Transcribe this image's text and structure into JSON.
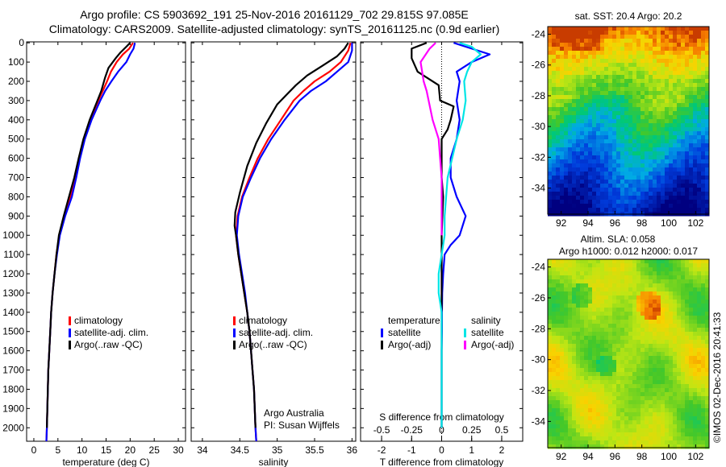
{
  "header": {
    "line1": "Argo profile: CS 5903692_191 25-Nov-2016 20161129_702 29.815S 97.085E",
    "line2": "Climatology: CARS2009. Satellite-adjusted climatology: synTS_20161125.nc (0.9d earlier)"
  },
  "depth_ticks": [
    "0",
    "100",
    "200",
    "300",
    "400",
    "500",
    "600",
    "700",
    "800",
    "900",
    "1000",
    "1100",
    "1200",
    "1300",
    "1400",
    "1500",
    "1600",
    "1700",
    "1800",
    "1900",
    "2000"
  ],
  "colors": {
    "climatology": "#ff0000",
    "satellite_adj": "#0000ff",
    "argo": "#000000",
    "s_satellite": "#00e5e5",
    "s_argo": "#ff00ff"
  },
  "chart_data": [
    {
      "type": "line",
      "name": "temperature-profile",
      "xlabel": "temperature (deg C)",
      "xlim": [
        -1.5,
        31.5
      ],
      "ylim": [
        2070,
        -5
      ],
      "x_ticks": [
        "0",
        "5",
        "10",
        "15",
        "20",
        "25",
        "30"
      ],
      "legend": [
        "climatology",
        "satellite-adj. clim.",
        "Argo(..raw -QC)"
      ],
      "legend_position": "lower-right",
      "series": [
        {
          "name": "climatology",
          "color": "#ff0000",
          "points": [
            [
              20.6,
              0
            ],
            [
              19.8,
              30
            ],
            [
              18.5,
              60
            ],
            [
              17.2,
              100
            ],
            [
              16.0,
              150
            ],
            [
              15.2,
              200
            ],
            [
              14.3,
              250
            ],
            [
              13.4,
              300
            ],
            [
              11.8,
              400
            ],
            [
              10.5,
              500
            ],
            [
              9.5,
              600
            ],
            [
              8.6,
              700
            ],
            [
              7.6,
              800
            ],
            [
              6.4,
              900
            ],
            [
              5.3,
              1000
            ],
            [
              4.7,
              1100
            ],
            [
              4.3,
              1200
            ],
            [
              3.9,
              1300
            ],
            [
              3.6,
              1400
            ],
            [
              3.4,
              1500
            ],
            [
              3.2,
              1600
            ],
            [
              3.0,
              1700
            ],
            [
              2.9,
              1800
            ],
            [
              2.8,
              1900
            ],
            [
              2.7,
              2000
            ],
            [
              2.6,
              2070
            ]
          ]
        },
        {
          "name": "satellite-adj. clim.",
          "color": "#0000ff",
          "points": [
            [
              21.0,
              0
            ],
            [
              20.7,
              30
            ],
            [
              20.0,
              60
            ],
            [
              19.2,
              100
            ],
            [
              17.5,
              150
            ],
            [
              16.1,
              200
            ],
            [
              14.8,
              250
            ],
            [
              13.8,
              300
            ],
            [
              12.0,
              400
            ],
            [
              10.6,
              500
            ],
            [
              9.6,
              600
            ],
            [
              8.8,
              700
            ],
            [
              7.9,
              800
            ],
            [
              6.5,
              900
            ],
            [
              5.4,
              1000
            ],
            [
              4.8,
              1100
            ],
            [
              4.3,
              1200
            ],
            [
              3.9,
              1300
            ],
            [
              3.6,
              1400
            ],
            [
              3.4,
              1500
            ],
            [
              3.2,
              1600
            ],
            [
              3.0,
              1700
            ],
            [
              2.9,
              1800
            ],
            [
              2.8,
              1900
            ],
            [
              2.7,
              2000
            ],
            [
              2.6,
              2070
            ]
          ]
        },
        {
          "name": "Argo(..raw -QC)",
          "color": "#000000",
          "points": [
            [
              20.0,
              0
            ],
            [
              19.2,
              20
            ],
            [
              18.0,
              50
            ],
            [
              17.0,
              80
            ],
            [
              15.5,
              130
            ],
            [
              14.8,
              180
            ],
            [
              14.0,
              250
            ],
            [
              13.2,
              300
            ],
            [
              11.6,
              400
            ],
            [
              10.3,
              500
            ],
            [
              9.3,
              600
            ],
            [
              8.4,
              700
            ],
            [
              7.3,
              800
            ],
            [
              6.2,
              900
            ],
            [
              5.2,
              1000
            ],
            [
              4.7,
              1100
            ],
            [
              4.3,
              1200
            ],
            [
              3.9,
              1300
            ],
            [
              3.6,
              1400
            ],
            [
              3.4,
              1500
            ],
            [
              3.2,
              1600
            ],
            [
              3.0,
              1700
            ],
            [
              2.9,
              1800
            ],
            [
              2.8,
              1900
            ],
            [
              2.7,
              2000
            ]
          ]
        }
      ]
    },
    {
      "type": "line",
      "name": "salinity-profile",
      "xlabel": "salinity",
      "xlim": [
        33.85,
        36.05
      ],
      "ylim": [
        2070,
        -5
      ],
      "x_ticks": [
        "34",
        "34.5",
        "35",
        "35.5",
        "36"
      ],
      "legend": [
        "climatology",
        "satellite-adj. clim.",
        "Argo(..raw -QC)"
      ],
      "legend_position": "lower-right",
      "annotation": [
        "Argo Australia",
        "PI: Susan Wijffels"
      ],
      "series": [
        {
          "name": "climatology",
          "color": "#ff0000",
          "points": [
            [
              35.98,
              0
            ],
            [
              35.95,
              40
            ],
            [
              35.85,
              100
            ],
            [
              35.7,
              150
            ],
            [
              35.5,
              200
            ],
            [
              35.35,
              250
            ],
            [
              35.22,
              300
            ],
            [
              35.05,
              400
            ],
            [
              34.88,
              500
            ],
            [
              34.74,
              600
            ],
            [
              34.63,
              700
            ],
            [
              34.53,
              800
            ],
            [
              34.47,
              900
            ],
            [
              34.45,
              1000
            ],
            [
              34.48,
              1100
            ],
            [
              34.52,
              1200
            ],
            [
              34.56,
              1300
            ],
            [
              34.6,
              1400
            ],
            [
              34.63,
              1500
            ],
            [
              34.65,
              1600
            ],
            [
              34.67,
              1700
            ],
            [
              34.69,
              1800
            ],
            [
              34.7,
              1900
            ],
            [
              34.71,
              2000
            ],
            [
              34.72,
              2070
            ]
          ]
        },
        {
          "name": "satellite-adj. clim.",
          "color": "#0000ff",
          "points": [
            [
              36.0,
              0
            ],
            [
              36.0,
              40
            ],
            [
              35.95,
              100
            ],
            [
              35.8,
              150
            ],
            [
              35.65,
              200
            ],
            [
              35.45,
              250
            ],
            [
              35.3,
              300
            ],
            [
              35.1,
              400
            ],
            [
              34.92,
              500
            ],
            [
              34.77,
              600
            ],
            [
              34.65,
              700
            ],
            [
              34.54,
              800
            ],
            [
              34.48,
              900
            ],
            [
              34.46,
              1000
            ],
            [
              34.49,
              1100
            ],
            [
              34.53,
              1200
            ],
            [
              34.57,
              1300
            ],
            [
              34.6,
              1400
            ],
            [
              34.63,
              1500
            ],
            [
              34.65,
              1600
            ],
            [
              34.67,
              1700
            ],
            [
              34.69,
              1800
            ],
            [
              34.7,
              1900
            ],
            [
              34.71,
              2000
            ],
            [
              34.72,
              2070
            ]
          ]
        },
        {
          "name": "Argo(..raw -QC)",
          "color": "#000000",
          "points": [
            [
              35.95,
              0
            ],
            [
              35.9,
              30
            ],
            [
              35.8,
              70
            ],
            [
              35.6,
              120
            ],
            [
              35.4,
              170
            ],
            [
              35.25,
              220
            ],
            [
              35.15,
              260
            ],
            [
              35.0,
              320
            ],
            [
              34.85,
              420
            ],
            [
              34.72,
              520
            ],
            [
              34.6,
              640
            ],
            [
              34.5,
              780
            ],
            [
              34.44,
              880
            ],
            [
              34.43,
              950
            ],
            [
              34.45,
              1000
            ],
            [
              34.48,
              1100
            ],
            [
              34.52,
              1200
            ],
            [
              34.56,
              1300
            ],
            [
              34.6,
              1400
            ],
            [
              34.63,
              1500
            ],
            [
              34.65,
              1600
            ],
            [
              34.67,
              1700
            ],
            [
              34.69,
              1800
            ],
            [
              34.7,
              1900
            ],
            [
              34.71,
              2000
            ]
          ]
        }
      ]
    },
    {
      "type": "line",
      "name": "difference-profile",
      "xlabel": "T difference from climatology",
      "top_label": "S difference from climatology",
      "xlim": [
        -2.7,
        2.7
      ],
      "ylim": [
        2070,
        -5
      ],
      "x_ticks": [
        "-2",
        "-1",
        "0",
        "1",
        "2"
      ],
      "top_ticks": [
        "-0.5",
        "-0.25",
        "0",
        "0.25",
        "0.5"
      ],
      "legend_titles": [
        "temperature",
        "salinity"
      ],
      "legend": [
        "satellite",
        "Argo(-adj)",
        "satellite",
        "Argo(-adj)"
      ],
      "legend_position": "lower-center",
      "series": [
        {
          "name": "satellite",
          "group": "temperature",
          "color": "#0000ff",
          "points": [
            [
              0.4,
              0
            ],
            [
              0.8,
              20
            ],
            [
              1.6,
              60
            ],
            [
              1.0,
              100
            ],
            [
              0.5,
              150
            ],
            [
              0.6,
              200
            ],
            [
              0.5,
              300
            ],
            [
              0.6,
              400
            ],
            [
              0.5,
              500
            ],
            [
              0.3,
              600
            ],
            [
              0.3,
              700
            ],
            [
              0.5,
              800
            ],
            [
              0.8,
              900
            ],
            [
              0.6,
              1000
            ],
            [
              0.3,
              1050
            ],
            [
              0.1,
              1100
            ],
            [
              0.05,
              1200
            ],
            [
              0.02,
              1300
            ],
            [
              0.01,
              1400
            ],
            [
              0.01,
              1500
            ],
            [
              0.0,
              1600
            ],
            [
              0.0,
              1700
            ],
            [
              0.0,
              1800
            ],
            [
              0.0,
              1900
            ],
            [
              0.0,
              2000
            ]
          ]
        },
        {
          "name": "Argo(-adj)",
          "group": "temperature",
          "color": "#000000",
          "points": [
            [
              -0.5,
              0
            ],
            [
              -1.0,
              30
            ],
            [
              -1.0,
              80
            ],
            [
              -0.8,
              150
            ],
            [
              -0.1,
              220
            ],
            [
              -0.05,
              300
            ],
            [
              0.4,
              330
            ],
            [
              0.3,
              400
            ],
            [
              0.2,
              450
            ],
            [
              0.0,
              500
            ],
            [
              0.0,
              700
            ],
            [
              0.05,
              800
            ],
            [
              0.0,
              1000
            ],
            [
              0.0,
              1200
            ],
            [
              0.0,
              1400
            ],
            [
              0.0,
              1600
            ],
            [
              0.0,
              1800
            ],
            [
              0.0,
              2000
            ]
          ]
        },
        {
          "name": "satellite",
          "group": "salinity",
          "color": "#00e5e5",
          "points": [
            [
              0.6,
              0
            ],
            [
              1.0,
              20
            ],
            [
              1.3,
              60
            ],
            [
              1.0,
              100
            ],
            [
              0.85,
              150
            ],
            [
              0.75,
              200
            ],
            [
              0.8,
              300
            ],
            [
              0.7,
              400
            ],
            [
              0.5,
              500
            ],
            [
              0.2,
              700
            ],
            [
              0.1,
              900
            ],
            [
              0.1,
              1000
            ],
            [
              0.0,
              1100
            ],
            [
              -0.1,
              1200
            ],
            [
              -0.1,
              1300
            ],
            [
              0.0,
              1400
            ],
            [
              0.0,
              1600
            ],
            [
              0.0,
              1800
            ],
            [
              0.0,
              2000
            ]
          ]
        },
        {
          "name": "Argo(-adj)",
          "group": "salinity",
          "color": "#ff00ff",
          "points": [
            [
              -0.2,
              0
            ],
            [
              -0.4,
              30
            ],
            [
              -0.7,
              100
            ],
            [
              -0.6,
              200
            ],
            [
              -0.5,
              250
            ],
            [
              -0.3,
              400
            ],
            [
              -0.1,
              500
            ],
            [
              -0.05,
              600
            ],
            [
              0.0,
              700
            ],
            [
              0.0,
              800
            ],
            [
              0.0,
              1000
            ]
          ]
        }
      ]
    },
    {
      "type": "heatmap",
      "name": "sst-map",
      "title": "sat. SST: 20.4  Argo: 20.2",
      "x_ticks": [
        "92",
        "94",
        "96",
        "98",
        "100",
        "102"
      ],
      "y_ticks": [
        "-24",
        "-26",
        "-28",
        "-30",
        "-32",
        "-34"
      ],
      "xlim": [
        91.0,
        103.0
      ],
      "ylim": [
        -35.7,
        -23.5
      ]
    },
    {
      "type": "heatmap",
      "name": "sla-map",
      "title": [
        "Altim. SLA: 0.058",
        "Argo h1000: 0.012 h2000: 0.017"
      ],
      "x_ticks": [
        "92",
        "94",
        "96",
        "98",
        "100",
        "102"
      ],
      "y_ticks": [
        "-24",
        "-26",
        "-28",
        "-30",
        "-32",
        "-34"
      ],
      "xlim": [
        91.0,
        103.0
      ],
      "ylim": [
        -35.7,
        -23.5
      ]
    }
  ],
  "footer": {
    "stamp": "©IMOS 02-Dec-2016 20:41:33"
  }
}
